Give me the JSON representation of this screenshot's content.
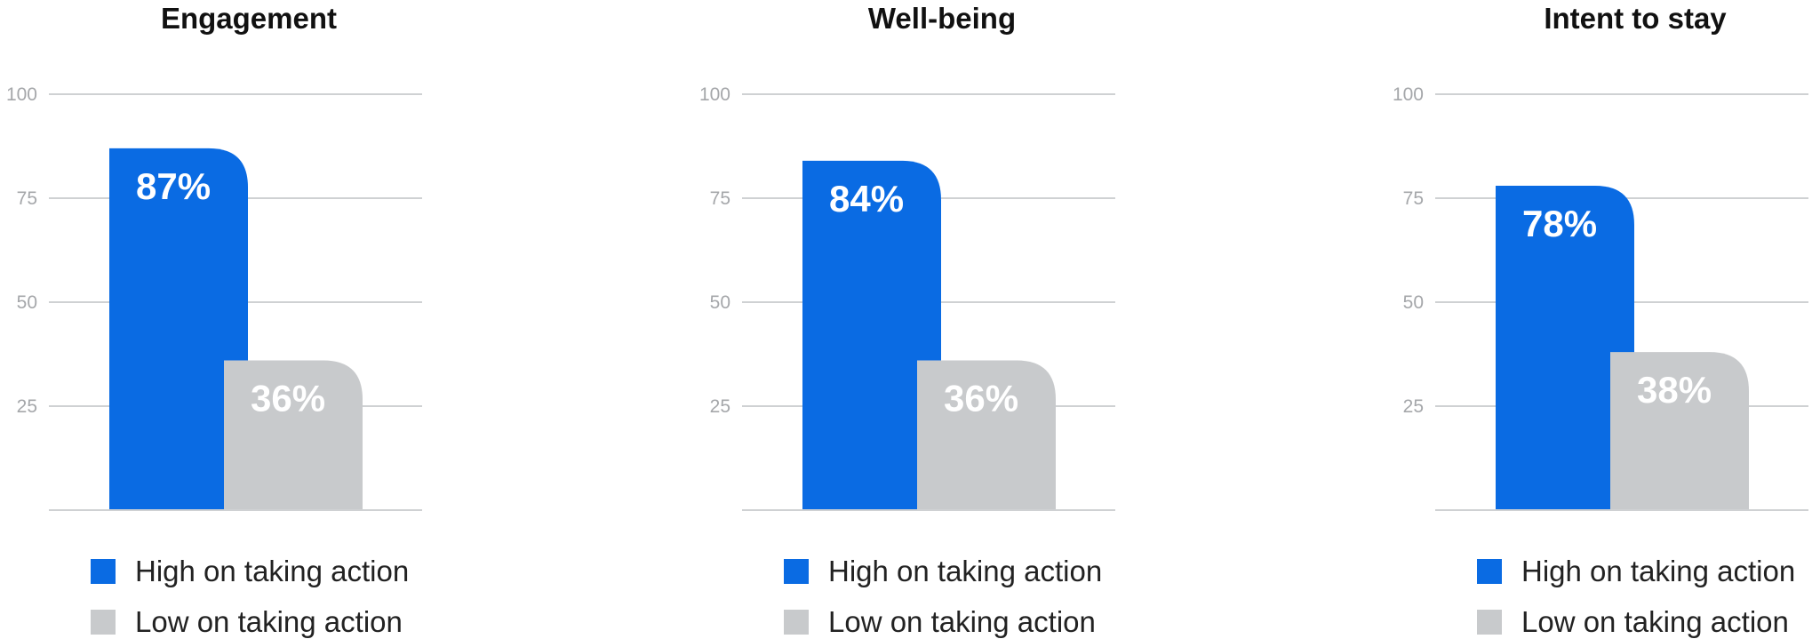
{
  "colors": {
    "high": "#0a6be3",
    "low": "#c8cacc",
    "grid": "#cfd1d3",
    "tick": "#a5a7aa",
    "barLabel": "#ffffff"
  },
  "chart_data": [
    {
      "type": "bar",
      "title": "Engagement",
      "categories": [
        "High on taking action",
        "Low on taking action"
      ],
      "values": [
        87,
        36
      ],
      "value_labels": [
        "87%",
        "36%"
      ],
      "ylim": [
        0,
        100
      ],
      "yticks": [
        100,
        75,
        50,
        25
      ],
      "grid": true,
      "legend": [
        "High on taking action",
        "Low on taking action"
      ]
    },
    {
      "type": "bar",
      "title": "Well-being",
      "categories": [
        "High on taking action",
        "Low on taking action"
      ],
      "values": [
        84,
        36
      ],
      "value_labels": [
        "84%",
        "36%"
      ],
      "ylim": [
        0,
        100
      ],
      "yticks": [
        100,
        75,
        50,
        25
      ],
      "grid": true,
      "legend": [
        "High on taking action",
        "Low on taking action"
      ]
    },
    {
      "type": "bar",
      "title": "Intent to stay",
      "categories": [
        "High on taking action",
        "Low on taking action"
      ],
      "values": [
        78,
        38
      ],
      "value_labels": [
        "78%",
        "38%"
      ],
      "ylim": [
        0,
        100
      ],
      "yticks": [
        100,
        75,
        50,
        25
      ],
      "grid": true,
      "legend": [
        "High on taking action",
        "Low on taking action"
      ]
    }
  ]
}
